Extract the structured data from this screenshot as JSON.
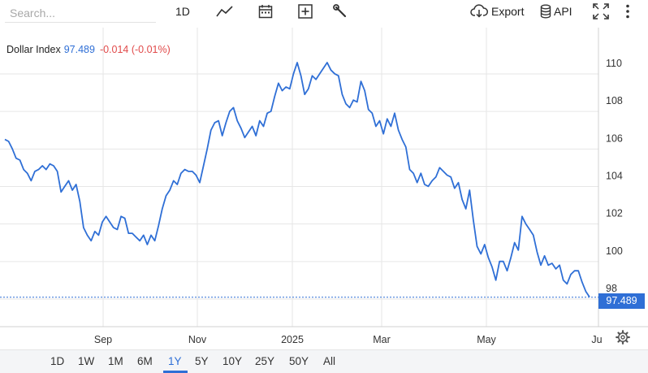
{
  "toolbar": {
    "search_placeholder": "Search...",
    "interval_label": "1D",
    "export_label": "Export",
    "api_label": "API"
  },
  "legend": {
    "name": "Dollar Index",
    "value": "97.489",
    "change": "-0.014 (-0.01%)"
  },
  "price_tag": "97.489",
  "colors": {
    "line": "#2f6fd6",
    "change_negative": "#e14b4b",
    "grid": "#e6e6e6"
  },
  "range_buttons": [
    "1D",
    "1W",
    "1M",
    "6M",
    "1Y",
    "5Y",
    "10Y",
    "25Y",
    "50Y",
    "All"
  ],
  "range_active": "1Y",
  "chart_data": {
    "type": "line",
    "y_ticks": [
      "110",
      "108",
      "106",
      "104",
      "102",
      "100",
      "98"
    ],
    "x_ticks": [
      "Sep",
      "Nov",
      "2025",
      "Mar",
      "May",
      "Ju"
    ],
    "ylim": [
      97,
      111
    ],
    "last_value": 97.489,
    "series": [
      {
        "values": [
          105.9,
          105.8,
          105.4,
          104.9,
          104.8,
          104.3,
          104.1,
          103.7,
          104.2,
          104.3,
          104.5,
          104.3,
          104.6,
          104.5,
          104.2,
          103.1,
          103.4,
          103.7,
          103.2,
          103.5,
          102.6,
          101.2,
          100.8,
          100.5,
          101.0,
          100.8,
          101.5,
          101.8,
          101.5,
          101.2,
          101.1,
          101.8,
          101.7,
          100.9,
          100.9,
          100.7,
          100.5,
          100.8,
          100.3,
          100.8,
          100.5,
          101.3,
          102.2,
          102.9,
          103.2,
          103.7,
          103.5,
          104.1,
          104.3,
          104.2,
          104.2,
          104.0,
          103.6,
          104.5,
          105.4,
          106.4,
          106.8,
          106.9,
          106.1,
          106.8,
          107.4,
          107.6,
          106.9,
          106.5,
          106.0,
          106.3,
          106.6,
          106.1,
          106.9,
          106.6,
          107.3,
          107.4,
          108.2,
          108.9,
          108.5,
          108.7,
          108.6,
          109.4,
          110.0,
          109.3,
          108.3,
          108.6,
          109.3,
          109.1,
          109.4,
          109.7,
          110.0,
          109.6,
          109.4,
          109.3,
          108.3,
          107.8,
          107.6,
          108.0,
          107.9,
          109.0,
          108.5,
          107.5,
          107.3,
          106.6,
          106.9,
          106.2,
          107.0,
          106.6,
          107.3,
          106.4,
          105.9,
          105.5,
          104.3,
          104.1,
          103.6,
          104.1,
          103.5,
          103.4,
          103.7,
          103.9,
          104.4,
          104.2,
          104.0,
          103.9,
          103.3,
          103.6,
          102.7,
          102.2,
          103.2,
          101.6,
          100.2,
          99.8,
          100.3,
          99.6,
          99.1,
          98.4,
          99.4,
          99.4,
          98.9,
          99.6,
          100.4,
          100.0,
          101.8,
          101.4,
          101.1,
          100.8,
          99.9,
          99.2,
          99.7,
          99.2,
          99.3,
          99.0,
          99.2,
          98.4,
          98.2,
          98.7,
          98.9,
          98.9,
          98.3,
          97.8,
          97.5
        ]
      }
    ]
  }
}
